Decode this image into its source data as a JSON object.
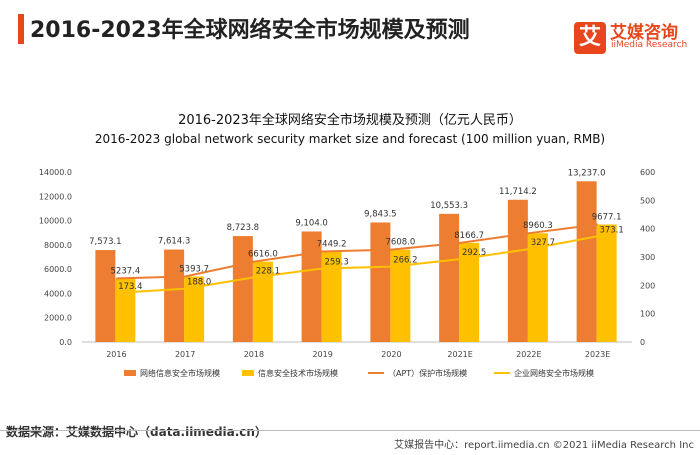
{
  "header": {
    "title": "2016-2023年全球网络安全市场规模及预测",
    "logo_mark": "艾",
    "logo_cn": "艾媒咨询",
    "logo_en": "iiMedia Research"
  },
  "chart_data": {
    "type": "bar",
    "title": "2016-2023年全球网络安全市场规模及预测（亿元人民币）",
    "subtitle": "2016-2023 global network security market size and forecast (100 million yuan, RMB)",
    "categories": [
      "2016",
      "2017",
      "2018",
      "2019",
      "2020",
      "2021E",
      "2022E",
      "2023E"
    ],
    "y_left": {
      "ylim": [
        0,
        14000
      ],
      "ticks": [
        "0.0",
        "2000.0",
        "4000.0",
        "6000.0",
        "8000.0",
        "10000.0",
        "12000.0",
        "14000.0"
      ]
    },
    "y_right": {
      "ylim": [
        0,
        600
      ],
      "ticks": [
        "0",
        "100",
        "200",
        "300",
        "400",
        "500",
        "600"
      ]
    },
    "series": [
      {
        "name": "网络信息安全市场规模",
        "kind": "bar",
        "axis": "left",
        "color": "#ED7D31",
        "values": [
          7573.1,
          7614.3,
          8723.8,
          9104.0,
          9843.5,
          10553.3,
          11714.2,
          13237.0
        ],
        "labels": [
          "7,573.1",
          "7,614.3",
          "8,723.8",
          "9,104.0",
          "9,843.5",
          "10,553.3",
          "11,714.2",
          "13,237.0"
        ]
      },
      {
        "name": "信息安全技术市场规模",
        "kind": "bar",
        "axis": "left",
        "color": "#FFC000",
        "values": [
          5237.4,
          5393.7,
          6616.0,
          7449.2,
          7608.0,
          8166.7,
          8960.3,
          9677.1
        ],
        "labels": [
          "5237.4",
          "5393.7",
          "6616.0",
          "7449.2",
          "7608.0",
          "8166.7",
          "8960.3",
          "9677.1"
        ]
      },
      {
        "name": "（APT）保护市场规模",
        "kind": "line",
        "axis": "left",
        "color": "#ED7D31",
        "values": [
          5237.4,
          5393.7,
          6616.0,
          7449.2,
          7608.0,
          8166.7,
          8960.3,
          9677.1
        ]
      },
      {
        "name": "企业网络安全市场规模",
        "kind": "line",
        "axis": "right",
        "color": "#FFC000",
        "values": [
          173.4,
          188.0,
          228.1,
          259.3,
          266.2,
          292.5,
          327.7,
          373.1
        ],
        "labels": [
          "173.4",
          "188.0",
          "228.1",
          "259.3",
          "266.2",
          "292.5",
          "327.7",
          "373.1"
        ]
      }
    ],
    "legend_position": "bottom"
  },
  "footer": {
    "source": "数据来源：艾媒数据中心（data.iimedia.cn）",
    "copyright": "艾媒报告中心：report.iimedia.cn   ©2021  iiMedia Research  Inc"
  }
}
